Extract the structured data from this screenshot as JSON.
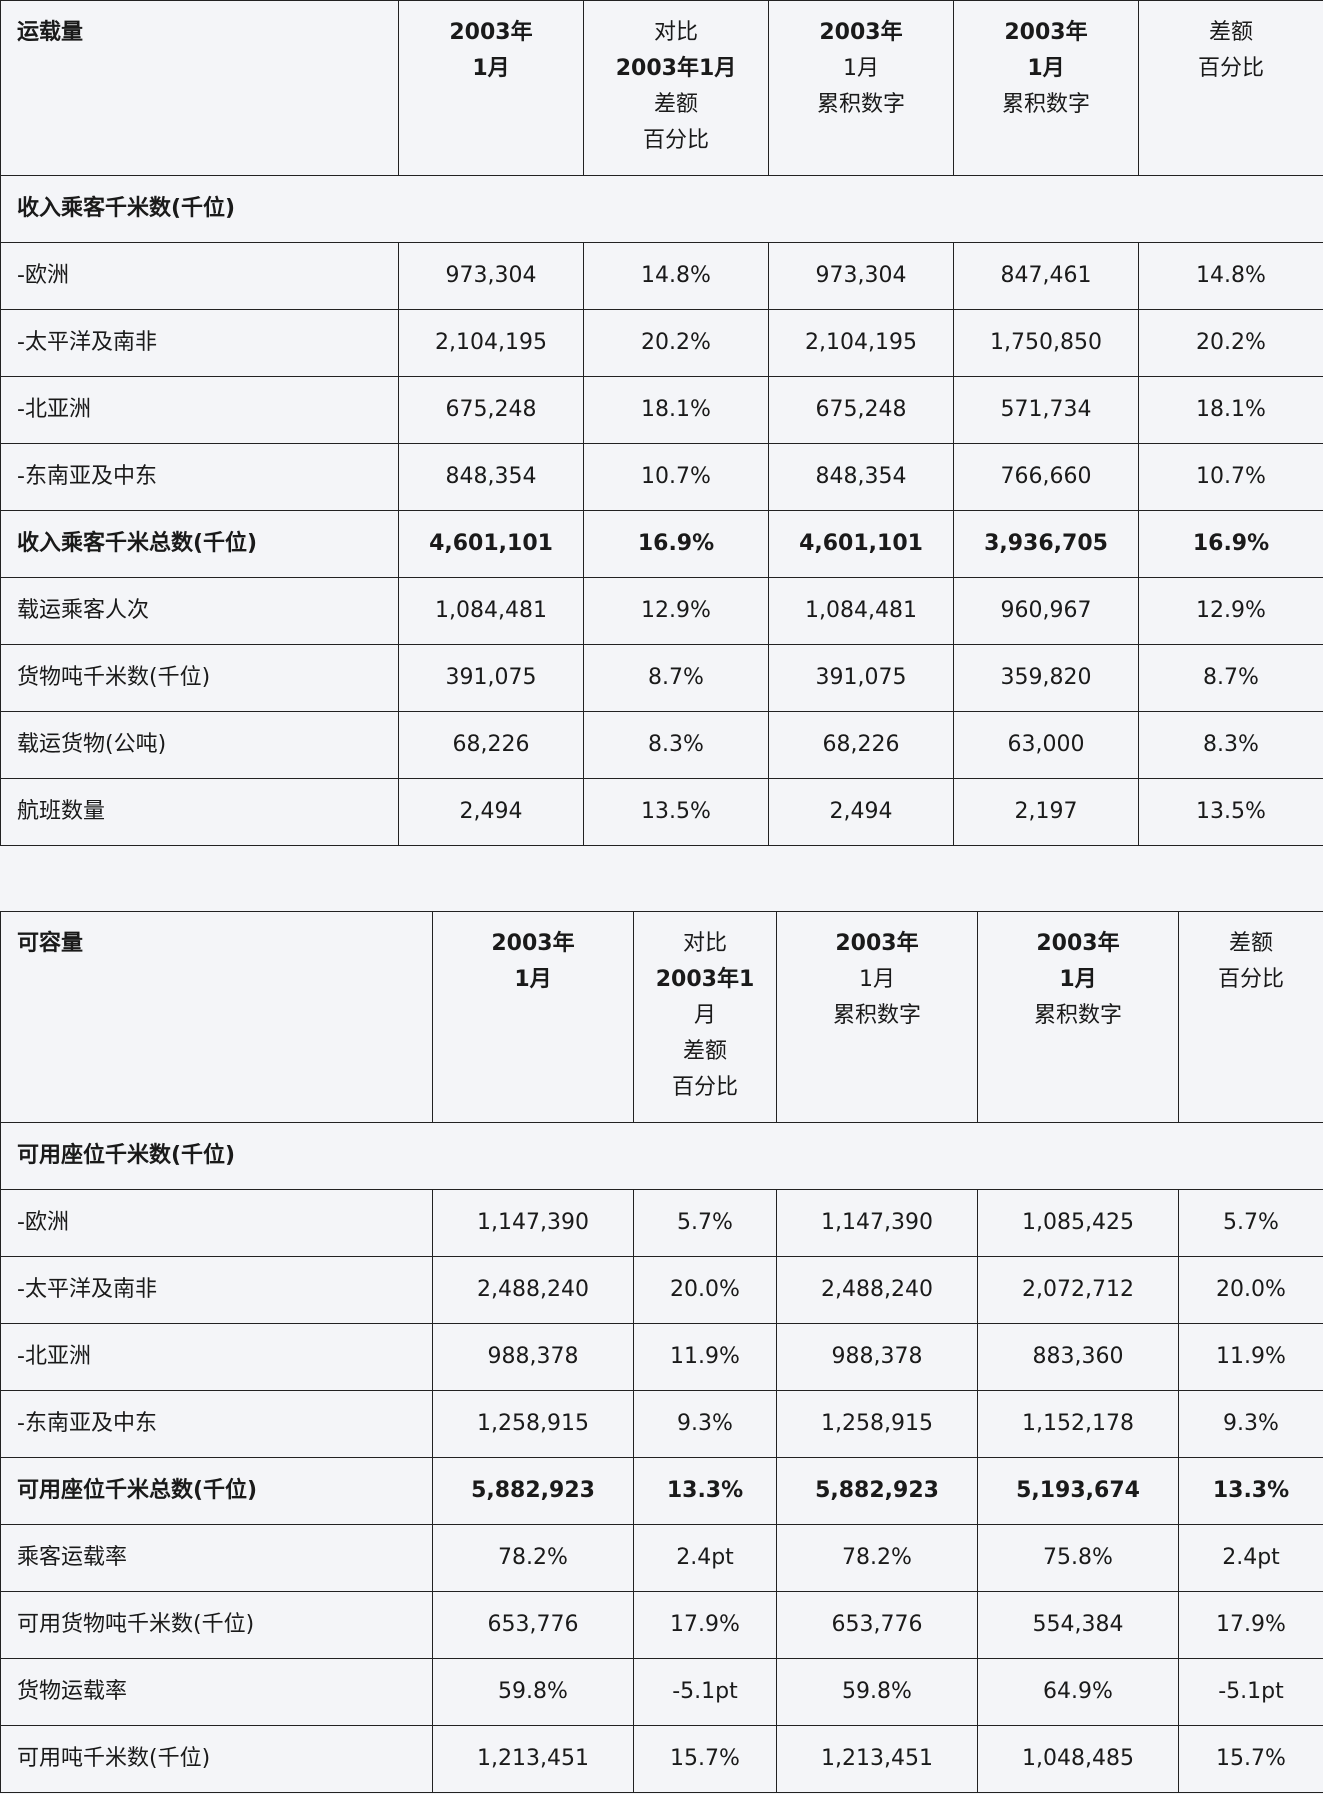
{
  "traffic": {
    "headers": {
      "label": "运载量",
      "c1": [
        "2003年",
        "1月"
      ],
      "c2": [
        "对比",
        "2003年1月",
        "差额",
        "百分比"
      ],
      "c3": [
        "2003年",
        "1月",
        "累积数字"
      ],
      "c4": [
        "2003年",
        "1月",
        "累积数字"
      ],
      "c5": [
        "差额",
        "百分比"
      ]
    },
    "section": "收入乘客千米数(千位)",
    "rows": [
      {
        "label": "-欧洲",
        "values": [
          "973,304",
          "14.8%",
          "973,304",
          "847,461",
          "14.8%"
        ]
      },
      {
        "label": "-太平洋及南非",
        "values": [
          "2,104,195",
          "20.2%",
          "2,104,195",
          "1,750,850",
          "20.2%"
        ]
      },
      {
        "label": "-北亚洲",
        "values": [
          "675,248",
          "18.1%",
          "675,248",
          "571,734",
          "18.1%"
        ]
      },
      {
        "label": "-东南亚及中东",
        "values": [
          "848,354",
          "10.7%",
          "848,354",
          "766,660",
          "10.7%"
        ]
      },
      {
        "label": "收入乘客千米总数(千位)",
        "values": [
          "4,601,101",
          "16.9%",
          "4,601,101",
          "3,936,705",
          "16.9%"
        ]
      },
      {
        "label": "载运乘客人次",
        "values": [
          "1,084,481",
          "12.9%",
          "1,084,481",
          "960,967",
          "12.9%"
        ]
      },
      {
        "label": "货物吨千米数(千位)",
        "values": [
          "391,075",
          "8.7%",
          "391,075",
          "359,820",
          "8.7%"
        ]
      },
      {
        "label": "载运货物(公吨)",
        "values": [
          "68,226",
          "8.3%",
          "68,226",
          "63,000",
          "8.3%"
        ]
      },
      {
        "label": "航班数量",
        "values": [
          "2,494",
          "13.5%",
          "2,494",
          "2,197",
          "13.5%"
        ]
      }
    ]
  },
  "capacity": {
    "headers": {
      "label": "可容量",
      "c1": [
        "2003年",
        "1月"
      ],
      "c2": [
        "对比",
        "2003年1",
        "月",
        "差额",
        "百分比"
      ],
      "c3": [
        "2003年",
        "1月",
        "累积数字"
      ],
      "c4": [
        "2003年",
        "1月",
        "累积数字"
      ],
      "c5": [
        "差额",
        "百分比"
      ]
    },
    "section": "可用座位千米数(千位)",
    "rows": [
      {
        "label": "-欧洲",
        "values": [
          "1,147,390",
          "5.7%",
          "1,147,390",
          "1,085,425",
          "5.7%"
        ]
      },
      {
        "label": "-太平洋及南非",
        "values": [
          "2,488,240",
          "20.0%",
          "2,488,240",
          "2,072,712",
          "20.0%"
        ]
      },
      {
        "label": "-北亚洲",
        "values": [
          "988,378",
          "11.9%",
          "988,378",
          "883,360",
          "11.9%"
        ]
      },
      {
        "label": "-东南亚及中东",
        "values": [
          "1,258,915",
          "9.3%",
          "1,258,915",
          "1,152,178",
          "9.3%"
        ]
      },
      {
        "label": "可用座位千米总数(千位)",
        "values": [
          "5,882,923",
          "13.3%",
          "5,882,923",
          "5,193,674",
          "13.3%"
        ]
      },
      {
        "label": "乘客运载率",
        "values": [
          "78.2%",
          "2.4pt",
          "78.2%",
          "75.8%",
          "2.4pt"
        ]
      },
      {
        "label": "可用货物吨千米数(千位)",
        "values": [
          "653,776",
          "17.9%",
          "653,776",
          "554,384",
          "17.9%"
        ]
      },
      {
        "label": "货物运载率",
        "values": [
          "59.8%",
          "-5.1pt",
          "59.8%",
          "64.9%",
          "-5.1pt"
        ]
      },
      {
        "label": "可用吨千米数(千位)",
        "values": [
          "1,213,451",
          "15.7%",
          "1,213,451",
          "1,048,485",
          "15.7%"
        ]
      }
    ]
  }
}
